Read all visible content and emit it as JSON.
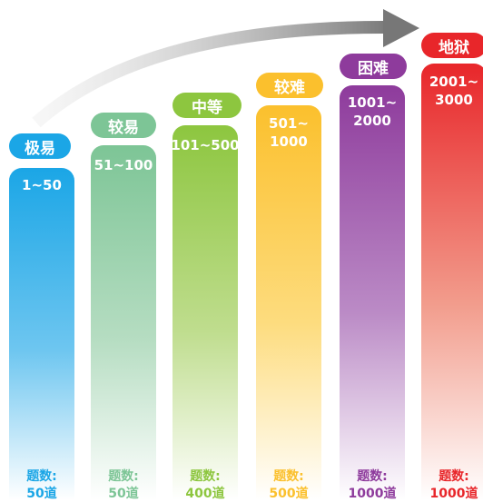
{
  "levels": [
    {
      "name": "极易",
      "range": "1~50",
      "count_label": "题数:",
      "count_value": "50道",
      "color": "#1BA6E6"
    },
    {
      "name": "较易",
      "range": "51~100",
      "count_label": "题数:",
      "count_value": "50道",
      "color": "#7DC596"
    },
    {
      "name": "中等",
      "range": "101~500",
      "count_label": "题数:",
      "count_value": "400道",
      "color": "#8DC63F"
    },
    {
      "name": "较难",
      "range_l1": "501~",
      "range_l2": "1000",
      "count_label": "题数:",
      "count_value": "500道",
      "color": "#FBC02D"
    },
    {
      "name": "困难",
      "range_l1": "1001~",
      "range_l2": "2000",
      "count_label": "题数:",
      "count_value": "1000道",
      "color": "#8E3B9C"
    },
    {
      "name": "地狱",
      "range_l1": "2001~",
      "range_l2": "3000",
      "count_label": "题数:",
      "count_value": "1000道",
      "color": "#E8262A"
    }
  ]
}
